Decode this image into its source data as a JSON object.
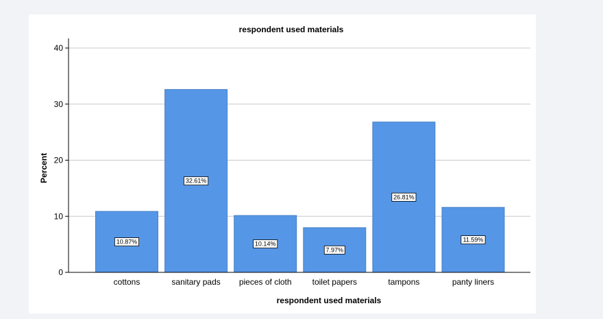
{
  "chart_data": {
    "type": "bar",
    "title": "respondent used materials",
    "xlabel": "respondent used materials",
    "ylabel": "Percent",
    "categories": [
      "cottons",
      "sanitary pads",
      "pieces of cloth",
      "toilet papers",
      "tampons",
      "panty liners"
    ],
    "values": [
      10.87,
      32.61,
      10.14,
      7.97,
      26.81,
      11.59
    ],
    "data_labels": [
      "10.87%",
      "32.61%",
      "10.14%",
      "7.97%",
      "26.81%",
      "11.59%"
    ],
    "ylim": [
      0,
      40
    ],
    "yticks": [
      0,
      10,
      20,
      30,
      40
    ],
    "grid": true,
    "legend": "none",
    "colors": {
      "bar": "#5596e6",
      "bar_outline": "#4a80c8",
      "grid": "#c8c8c8",
      "axis": "#000000"
    }
  }
}
